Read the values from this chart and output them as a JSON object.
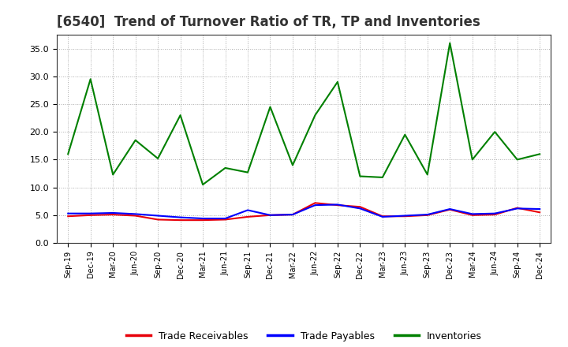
{
  "title": "[6540]  Trend of Turnover Ratio of TR, TP and Inventories",
  "x_labels": [
    "Sep-19",
    "Dec-19",
    "Mar-20",
    "Jun-20",
    "Sep-20",
    "Dec-20",
    "Mar-21",
    "Jun-21",
    "Sep-21",
    "Dec-21",
    "Mar-22",
    "Jun-22",
    "Sep-22",
    "Dec-22",
    "Mar-23",
    "Jun-23",
    "Sep-23",
    "Dec-23",
    "Mar-24",
    "Jun-24",
    "Sep-24",
    "Dec-24"
  ],
  "trade_receivables": [
    4.8,
    5.0,
    5.1,
    4.9,
    4.2,
    4.1,
    4.1,
    4.2,
    4.7,
    5.0,
    5.1,
    7.2,
    6.8,
    6.5,
    4.8,
    4.8,
    5.0,
    6.0,
    5.0,
    5.1,
    6.3,
    5.5
  ],
  "trade_payables": [
    5.3,
    5.3,
    5.4,
    5.2,
    4.9,
    4.6,
    4.4,
    4.4,
    5.9,
    5.0,
    5.1,
    6.8,
    6.9,
    6.2,
    4.7,
    4.9,
    5.1,
    6.1,
    5.2,
    5.3,
    6.2,
    6.1
  ],
  "inventories": [
    16.0,
    29.5,
    12.3,
    18.5,
    15.2,
    23.0,
    10.5,
    13.5,
    12.7,
    24.5,
    14.0,
    23.0,
    29.0,
    12.0,
    11.8,
    19.5,
    12.3,
    36.0,
    15.0,
    20.0,
    15.0,
    16.0
  ],
  "tr_color": "#e8000a",
  "tp_color": "#0000ff",
  "inv_color": "#008000",
  "ylim": [
    0.0,
    37.5
  ],
  "yticks": [
    0.0,
    5.0,
    10.0,
    15.0,
    20.0,
    25.0,
    30.0,
    35.0
  ],
  "background_color": "#ffffff",
  "grid_color": "#aaaaaa",
  "title_fontsize": 12,
  "legend_labels": [
    "Trade Receivables",
    "Trade Payables",
    "Inventories"
  ]
}
